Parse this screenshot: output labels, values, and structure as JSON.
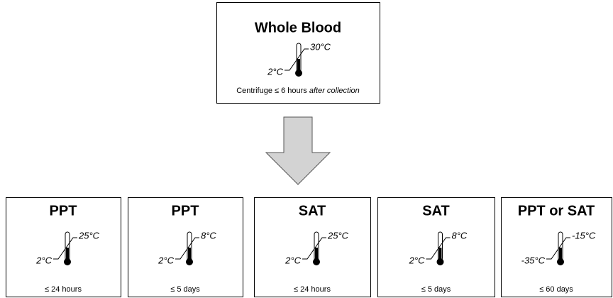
{
  "top": {
    "title": "Whole Blood",
    "high": "30°C",
    "low": "2°C",
    "note": {
      "text": "Centrifuge ≤ 6 hours ",
      "italic": "after collection"
    }
  },
  "boxes": [
    {
      "title": "PPT",
      "high": "25°C",
      "low": "2°C",
      "duration": "≤ 24 hours"
    },
    {
      "title": "PPT",
      "high": "8°C",
      "low": "2°C",
      "duration": "≤ 5 days"
    },
    {
      "title": "SAT",
      "high": "25°C",
      "low": "2°C",
      "duration": "≤ 24 hours"
    },
    {
      "title": "SAT",
      "high": "8°C",
      "low": "2°C",
      "duration": "≤ 5 days"
    },
    {
      "title": "PPT or SAT",
      "high": "-15°C",
      "low": "-35°C",
      "duration": "≤ 60 days"
    }
  ]
}
